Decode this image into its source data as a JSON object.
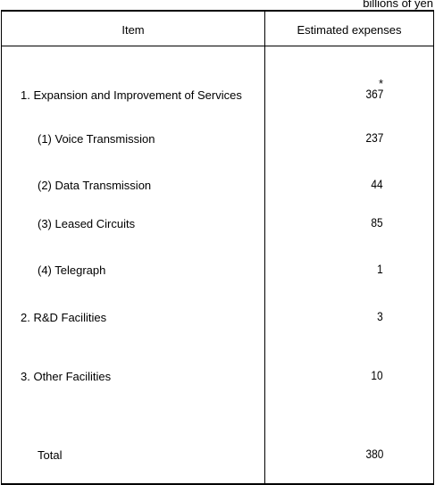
{
  "unit_note": "billions of yen",
  "header": {
    "item": "Item",
    "expenses": "Estimated expenses"
  },
  "rows": [
    {
      "label": "1. Expansion and Improvement of Services",
      "value": "367",
      "mark": "*"
    },
    {
      "label": "(1) Voice Transmission",
      "value": "237"
    },
    {
      "label": "(2) Data Transmission",
      "value": "44"
    },
    {
      "label": "(3) Leased Circuits",
      "value": "85"
    },
    {
      "label": "(4) Telegraph",
      "value": "1"
    },
    {
      "label": "2. R&D Facilities",
      "value": "3"
    },
    {
      "label": "3. Other Facilities",
      "value": "10"
    },
    {
      "label": "Total",
      "value": "380"
    }
  ]
}
